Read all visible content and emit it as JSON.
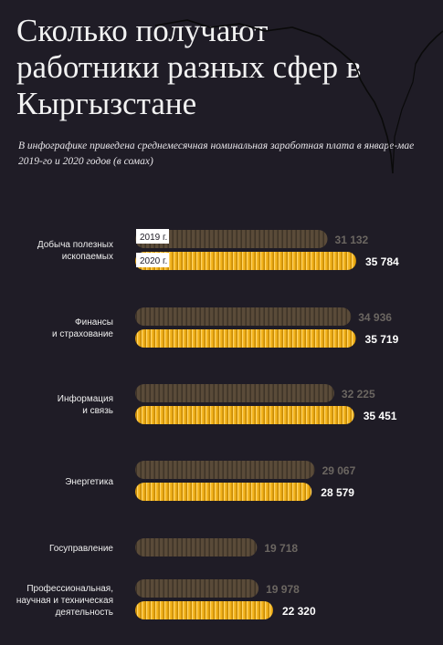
{
  "title": "Сколько получают работники разных сфер в Кыргызстане",
  "subtitle": "В инфографике приведена среднемесячная номинальная заработная плата в январе-мае 2019-го и 2020 годов (в сомах)",
  "colors": {
    "background": "#1f1c26",
    "series_2019": "#5a4b39",
    "series_2020": "#f2b21a",
    "label_2019": "#6b6661",
    "label_2020": "#ffffff"
  },
  "chart_data": {
    "type": "bar",
    "orientation": "horizontal",
    "categories": [
      "Добыча полезных ископаемых",
      "Финансы и страхование",
      "Информация и связь",
      "Энергетика",
      "Госуправление",
      "Профессиональная, научная и техническая деятельность"
    ],
    "category_lines": [
      [
        "Добыча полезных",
        "ископаемых"
      ],
      [
        "Финансы",
        "и страхование"
      ],
      [
        "Информация",
        "и связь"
      ],
      [
        "Энергетика"
      ],
      [
        "Госуправление"
      ],
      [
        "Профессиональная,",
        "научная и техническая",
        "деятельность"
      ]
    ],
    "series": [
      {
        "name": "2019 г.",
        "values": [
          31132,
          34936,
          32225,
          29067,
          19718,
          19978
        ],
        "labels": [
          "31 132",
          "34 936",
          "32 225",
          "29 067",
          "19 718",
          "19 978"
        ]
      },
      {
        "name": "2020 г.",
        "values": [
          35784,
          35719,
          35451,
          28579,
          null,
          22320
        ],
        "labels": [
          "35 784",
          "35 719",
          "35 451",
          "28 579",
          "",
          "22 320"
        ]
      }
    ],
    "legend_placement": "inline, first group",
    "grid": false
  }
}
